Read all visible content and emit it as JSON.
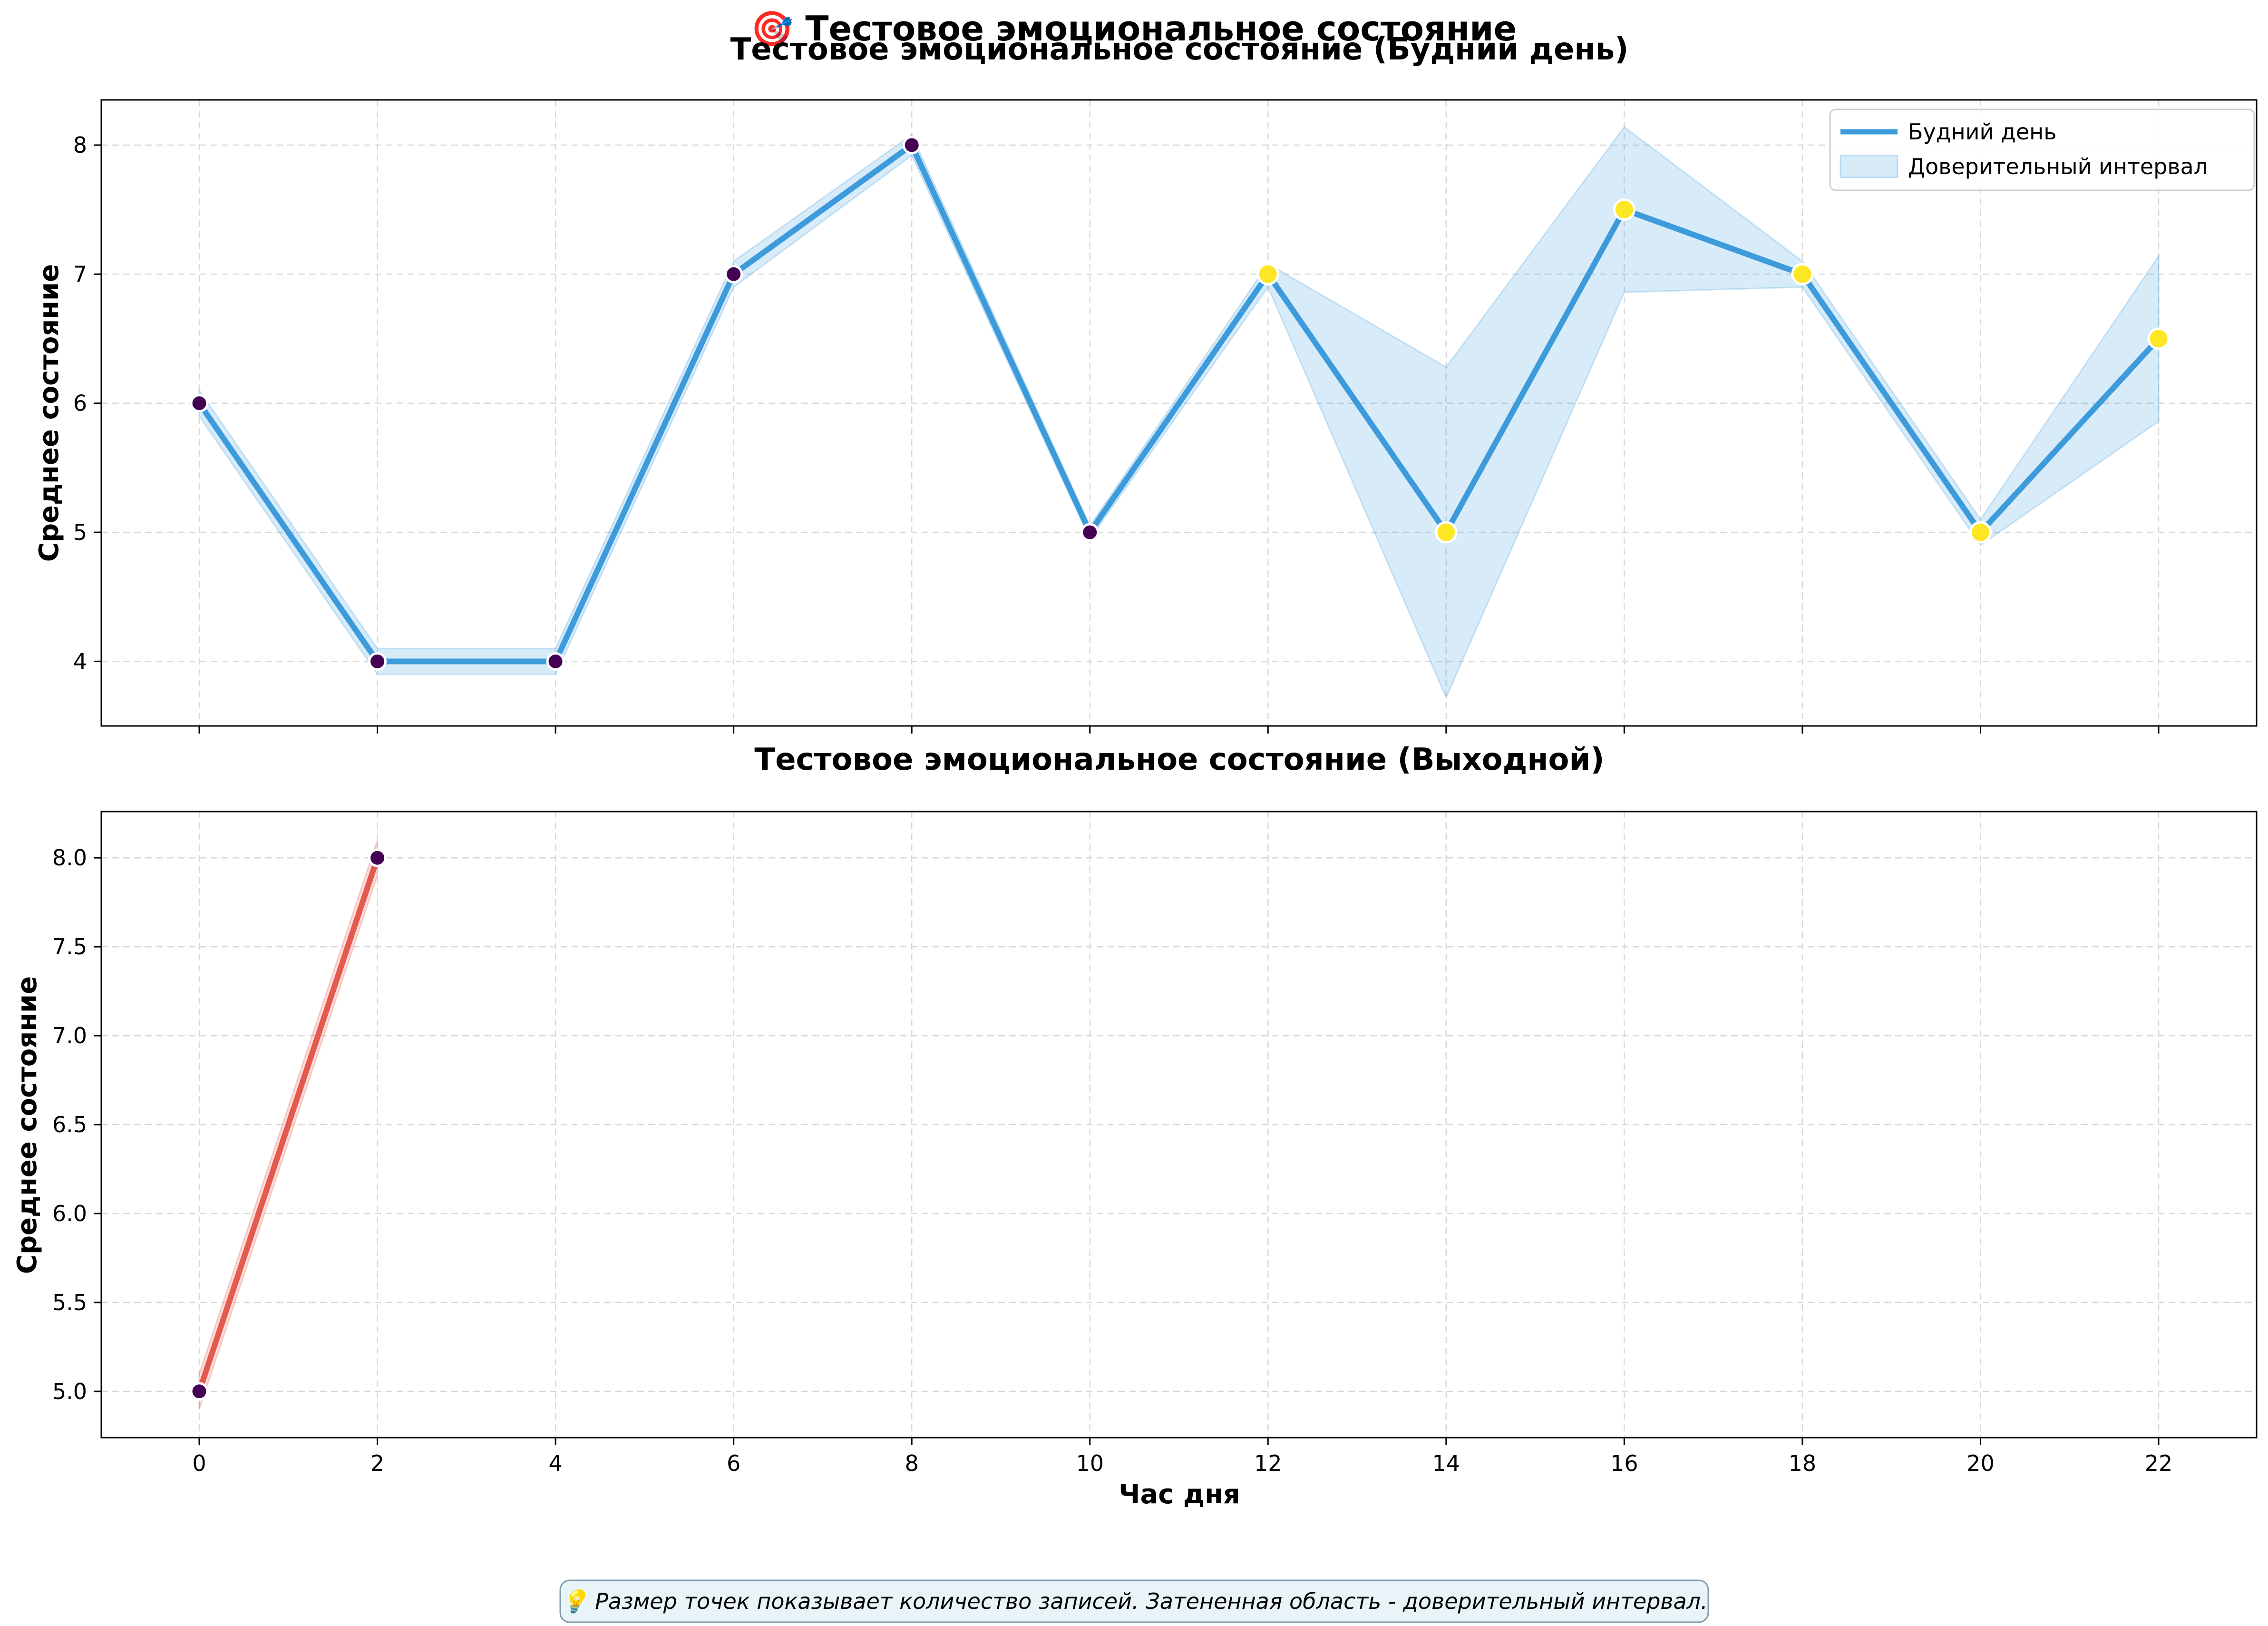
{
  "suptitle": "🎯 Тестовое эмоциональное состояние",
  "footnote": "💡 Размер точек показывает количество записей. Затененная область - доверительный интервал.",
  "colors": {
    "weekday": "#3d9bdc",
    "weekend": "#e55a4e",
    "point_low": "#440154",
    "point_high": "#fde725"
  },
  "chart_data": [
    {
      "type": "line",
      "title": "Тестовое эмоциональное состояние (Будний день)",
      "xlabel": "",
      "ylabel": "Среднее состояние",
      "xlim": [
        -1.1,
        23.1
      ],
      "ylim": [
        3.5,
        8.35
      ],
      "xticks": [
        0,
        2,
        4,
        6,
        8,
        10,
        12,
        14,
        16,
        18,
        20,
        22
      ],
      "show_xtick_labels": false,
      "yticks": [
        4,
        5,
        6,
        7,
        8
      ],
      "ytick_labels": [
        "4",
        "5",
        "6",
        "7",
        "8"
      ],
      "grid": true,
      "legend": {
        "position": "top-right",
        "entries": [
          "Будний день",
          "Доверительный интервал"
        ]
      },
      "series": [
        {
          "name": "Будний день",
          "x": [
            0,
            2,
            4,
            6,
            8,
            10,
            12,
            14,
            16,
            18,
            20,
            22
          ],
          "y": [
            6,
            4,
            4,
            7,
            8,
            5,
            7,
            5,
            7.5,
            7,
            5,
            6.5
          ],
          "ci_low": [
            5.9,
            3.9,
            3.9,
            6.9,
            7.92,
            4.95,
            6.9,
            3.72,
            6.86,
            6.9,
            4.9,
            5.86
          ],
          "ci_high": [
            6.1,
            4.1,
            4.1,
            7.1,
            8.08,
            5.05,
            7.08,
            6.28,
            8.14,
            7.1,
            5.1,
            7.14
          ],
          "point_level": [
            "low",
            "low",
            "low",
            "low",
            "low",
            "low",
            "high",
            "high",
            "high",
            "high",
            "high",
            "high"
          ]
        }
      ]
    },
    {
      "type": "line",
      "title": "Тестовое эмоциональное состояние (Выходной)",
      "xlabel": "Час дня",
      "ylabel": "Среднее состояние",
      "xlim": [
        -1.1,
        23.1
      ],
      "ylim": [
        4.74,
        8.26
      ],
      "xticks": [
        0,
        2,
        4,
        6,
        8,
        10,
        12,
        14,
        16,
        18,
        20,
        22
      ],
      "xtick_labels": [
        "0",
        "2",
        "4",
        "6",
        "8",
        "10",
        "12",
        "14",
        "16",
        "18",
        "20",
        "22"
      ],
      "show_xtick_labels": true,
      "yticks": [
        5.0,
        5.5,
        6.0,
        6.5,
        7.0,
        7.5,
        8.0
      ],
      "ytick_labels": [
        "5.0",
        "5.5",
        "6.0",
        "6.5",
        "7.0",
        "7.5",
        "8.0"
      ],
      "grid": true,
      "series": [
        {
          "x": [
            0,
            2
          ],
          "y": [
            5,
            8
          ],
          "ci_low": [
            4.9,
            7.9
          ],
          "ci_high": [
            5.1,
            8.1
          ],
          "point_level": [
            "low",
            "low"
          ]
        }
      ]
    }
  ]
}
